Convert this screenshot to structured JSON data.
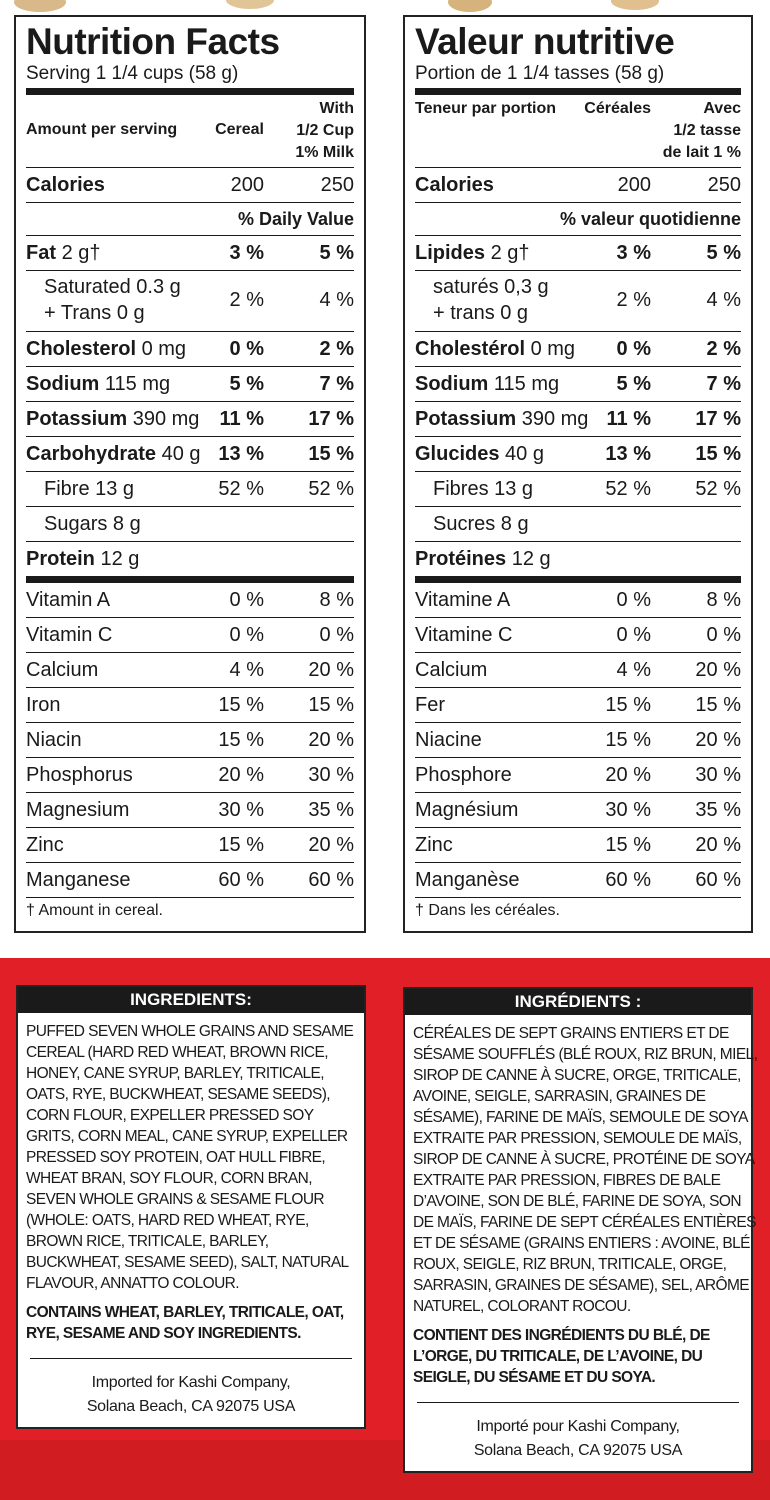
{
  "nutrition": [
    {
      "title": "Nutrition Facts",
      "serving": "Serving 1 1/4 cups (58 g)",
      "header": {
        "amount": "Amount per serving",
        "cereal": "Cereal",
        "milk": [
          "With",
          "1/2 Cup",
          "1% Milk"
        ]
      },
      "calories": {
        "name": "Calories",
        "cereal": "200",
        "milk": "250"
      },
      "daily_value": "% Daily Value",
      "nutrients": [
        {
          "name": "Fat",
          "amount": "2 g†",
          "cereal": "3 %",
          "milk": "5 %",
          "sub": [
            {
              "lines": [
                "Saturated 0.3 g",
                "+ Trans 0 g"
              ],
              "cereal": "2 %",
              "milk": "4 %"
            }
          ]
        },
        {
          "name": "Cholesterol",
          "amount": "0 mg",
          "cereal": "0 %",
          "milk": "2 %"
        },
        {
          "name": "Sodium",
          "amount": "115 mg",
          "cereal": "5 %",
          "milk": "7 %"
        },
        {
          "name": "Potassium",
          "amount": "390 mg",
          "cereal": "11 %",
          "milk": "17 %"
        },
        {
          "name": "Carbohydrate",
          "amount": "40 g",
          "cereal": "13 %",
          "milk": "15 %",
          "sub": [
            {
              "lines": [
                "Fibre 13 g"
              ],
              "cereal": "52 %",
              "milk": "52 %"
            },
            {
              "lines": [
                "Sugars 8 g"
              ]
            }
          ]
        },
        {
          "name": "Protein",
          "amount": "12 g"
        }
      ],
      "vitamins": [
        {
          "name": "Vitamin A",
          "cereal": "0 %",
          "milk": "8 %"
        },
        {
          "name": "Vitamin C",
          "cereal": "0 %",
          "milk": "0 %"
        },
        {
          "name": "Calcium",
          "cereal": "4 %",
          "milk": "20 %"
        },
        {
          "name": "Iron",
          "cereal": "15 %",
          "milk": "15 %"
        },
        {
          "name": "Niacin",
          "cereal": "15 %",
          "milk": "20 %"
        },
        {
          "name": "Phosphorus",
          "cereal": "20 %",
          "milk": "30 %"
        },
        {
          "name": "Magnesium",
          "cereal": "30 %",
          "milk": "35 %"
        },
        {
          "name": "Zinc",
          "cereal": "15 %",
          "milk": "20 %"
        },
        {
          "name": "Manganese",
          "cereal": "60 %",
          "milk": "60 %"
        }
      ],
      "footnote": "† Amount in cereal."
    },
    {
      "title": "Valeur nutritive",
      "serving": "Portion de 1 1/4 tasses (58 g)",
      "header": {
        "amount": "Teneur par portion",
        "cereal": "Céréales",
        "milk": [
          "Avec",
          "1/2 tasse",
          "de lait 1 %"
        ]
      },
      "calories": {
        "name": "Calories",
        "cereal": "200",
        "milk": "250"
      },
      "daily_value": "% valeur quotidienne",
      "nutrients": [
        {
          "name": "Lipides",
          "amount": "2 g†",
          "cereal": "3 %",
          "milk": "5 %",
          "sub": [
            {
              "lines": [
                "saturés 0,3 g",
                "+ trans 0 g"
              ],
              "cereal": "2 %",
              "milk": "4 %"
            }
          ]
        },
        {
          "name": "Cholestérol",
          "amount": "0 mg",
          "cereal": "0 %",
          "milk": "2 %"
        },
        {
          "name": "Sodium",
          "amount": "115 mg",
          "cereal": "5 %",
          "milk": "7 %"
        },
        {
          "name": "Potassium",
          "amount": "390 mg",
          "cereal": "11 %",
          "milk": "17 %"
        },
        {
          "name": "Glucides",
          "amount": "40 g",
          "cereal": "13 %",
          "milk": "15 %",
          "sub": [
            {
              "lines": [
                "Fibres 13 g"
              ],
              "cereal": "52 %",
              "milk": "52 %"
            },
            {
              "lines": [
                "Sucres 8 g"
              ]
            }
          ]
        },
        {
          "name": "Protéines",
          "amount": "12 g"
        }
      ],
      "vitamins": [
        {
          "name": "Vitamine A",
          "cereal": "0 %",
          "milk": "8 %"
        },
        {
          "name": "Vitamine C",
          "cereal": "0 %",
          "milk": "0 %"
        },
        {
          "name": "Calcium",
          "cereal": "4 %",
          "milk": "20 %"
        },
        {
          "name": "Fer",
          "cereal": "15 %",
          "milk": "15 %"
        },
        {
          "name": "Niacine",
          "cereal": "15 %",
          "milk": "20 %"
        },
        {
          "name": "Phosphore",
          "cereal": "20 %",
          "milk": "30 %"
        },
        {
          "name": "Magnésium",
          "cereal": "30 %",
          "milk": "35 %"
        },
        {
          "name": "Zinc",
          "cereal": "15 %",
          "milk": "20 %"
        },
        {
          "name": "Manganèse",
          "cereal": "60 %",
          "milk": "60 %"
        }
      ],
      "footnote": "† Dans les céréales."
    }
  ],
  "ingredients": [
    {
      "title": "INGREDIENTS:",
      "lines": [
        "PUFFED SEVEN WHOLE GRAINS AND SESAME",
        "CEREAL (HARD RED WHEAT, BROWN RICE,",
        "HONEY, CANE SYRUP, BARLEY, TRITICALE,",
        "OATS, RYE, BUCKWHEAT, SESAME SEEDS),",
        "CORN FLOUR, EXPELLER PRESSED SOY",
        "GRITS, CORN MEAL, CANE SYRUP, EXPELLER",
        "PRESSED SOY PROTEIN, OAT HULL FIBRE,",
        "WHEAT BRAN, SOY FLOUR, CORN BRAN,",
        "SEVEN WHOLE GRAINS & SESAME FLOUR",
        "(WHOLE: OATS, HARD RED WHEAT, RYE,",
        "BROWN RICE, TRITICALE, BARLEY,",
        "BUCKWHEAT, SESAME SEED), SALT, NATURAL",
        "FLAVOUR, ANNATTO COLOUR."
      ],
      "contains": [
        "CONTAINS WHEAT, BARLEY, TRITICALE, OAT,",
        "RYE, SESAME AND SOY INGREDIENTS."
      ],
      "imported": [
        "Imported for Kashi Company,",
        "Solana Beach, CA 92075  USA"
      ]
    },
    {
      "title": "INGRÉDIENTS :",
      "lines": [
        "CÉRÉALES DE SEPT GRAINS ENTIERS ET DE",
        "SÉSAME SOUFFLÉS (BLÉ ROUX, RIZ BRUN, MIEL,",
        "SIROP DE CANNE À SUCRE, ORGE, TRITICALE,",
        "AVOINE, SEIGLE, SARRASIN, GRAINES DE",
        "SÉSAME), FARINE DE MAÏS, SEMOULE DE SOYA",
        "EXTRAITE PAR PRESSION, SEMOULE DE MAÏS,",
        "SIROP DE CANNE À SUCRE, PROTÉINE DE SOYA",
        "EXTRAITE PAR PRESSION, FIBRES DE BALE",
        "D’AVOINE, SON DE BLÉ, FARINE DE SOYA, SON",
        "DE MAÏS, FARINE DE SEPT CÉRÉALES ENTIÈRES",
        "ET DE SÉSAME (GRAINS ENTIERS : AVOINE, BLÉ",
        "ROUX, SEIGLE, RIZ BRUN, TRITICALE, ORGE,",
        "SARRASIN, GRAINES DE SÉSAME), SEL, ARÔME",
        "NATUREL, COLORANT ROCOU."
      ],
      "contains": [
        "CONTIENT DES INGRÉDIENTS DU BLÉ, DE",
        "L’ORGE, DU TRITICALE, DE L’AVOINE, DU",
        "SEIGLE, DU SÉSAME ET DU SOYA."
      ],
      "imported": [
        "Importé pour Kashi Company,",
        "Solana Beach, CA 92075  USA"
      ]
    }
  ]
}
